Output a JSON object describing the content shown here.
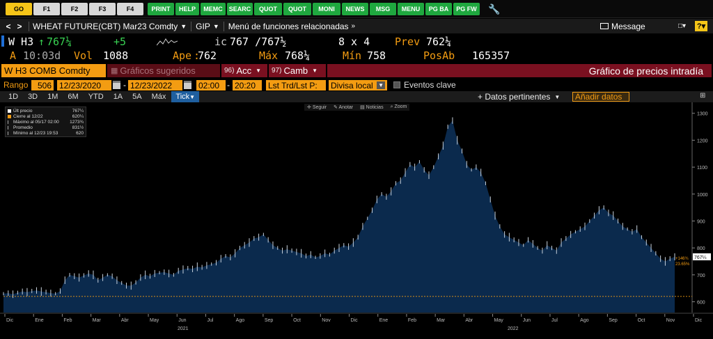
{
  "fkeys": [
    {
      "label": "GO",
      "style": "y",
      "w": 38
    },
    {
      "label": "F1",
      "style": "w",
      "w": 38
    },
    {
      "label": "F2",
      "style": "w",
      "w": 38
    },
    {
      "label": "F3",
      "style": "w",
      "w": 38
    },
    {
      "label": "F4",
      "style": "w",
      "w": 38
    },
    {
      "label": "PRINT",
      "style": "g",
      "w": 38
    },
    {
      "label": "HELP",
      "style": "g",
      "w": 34
    },
    {
      "label": "MEMC",
      "style": "g",
      "w": 36
    },
    {
      "label": "SEARC",
      "style": "g",
      "w": 37
    },
    {
      "label": "QUOT",
      "style": "g",
      "w": 40
    },
    {
      "label": "QUOT",
      "style": "g",
      "w": 40
    },
    {
      "label": "MONI",
      "style": "g",
      "w": 40
    },
    {
      "label": "NEWS",
      "style": "g",
      "w": 38
    },
    {
      "label": "MSG",
      "style": "g",
      "w": 38
    },
    {
      "label": "MENU",
      "style": "g",
      "w": 38
    },
    {
      "label": "PG BA",
      "style": "g",
      "w": 38
    },
    {
      "label": "PG FW",
      "style": "g",
      "w": 38
    }
  ],
  "nav": {
    "back": "<",
    "forward": ">",
    "security": "WHEAT FUTURE(CBT) Mar23 Comdty",
    "function": "GIP",
    "menu": "Menú de funciones relacionadas",
    "message": "Message"
  },
  "quote": {
    "ticker": "W H3",
    "last": "767¼",
    "change": "+5",
    "ic_label": "ic",
    "bid_ask": "767 /767½",
    "size": "8 x 4",
    "prev_label": "Prev",
    "prev": "762¼",
    "flag": "A",
    "time": "10:03d",
    "vol_label": "Vol",
    "vol": "1088",
    "open_label": "Ape",
    "open": "762",
    "high_label": "Máx",
    "high": "768¼",
    "low_label": "Mín",
    "low": "758",
    "oi_label": "PosAb",
    "oi": "165357"
  },
  "bar3": {
    "security": "W H3 COMB Comdty",
    "suggested": "Gráficos sugeridos",
    "actions_num": "96)",
    "actions": "Acc",
    "change_num": "97)",
    "change": "Camb",
    "title": "Gráfico de precios intradía"
  },
  "range": {
    "label": "Rango",
    "count": "506",
    "start": "12/23/2020",
    "end": "12/23/2022",
    "t_start": "02:00",
    "t_end": "20:20",
    "field": "Lst Trd/Lst P:",
    "currency": "Divisa local",
    "events": "Eventos clave"
  },
  "periods": [
    "1D",
    "3D",
    "1M",
    "6M",
    "YTD",
    "1A",
    "5A",
    "Máx",
    "Tick"
  ],
  "tools": {
    "datos": "+ Datos pertinentes",
    "add": "Añadir datos",
    "follow": "Seguir",
    "annotate": "Anotar",
    "news": "Noticias",
    "zoom": "Zoom"
  },
  "legend": [
    {
      "label": "Últ precio",
      "value": "767¼",
      "color": "#ffffff"
    },
    {
      "label": "Cierre al 12/22",
      "value": "620¼",
      "color": "#f39c12"
    },
    {
      "label": "Máximo al 05/17 02:00",
      "value": "1273¾",
      "color": "#ffffff"
    },
    {
      "label": "Promedio",
      "value": "831½",
      "color": "#ffffff"
    },
    {
      "label": "Mínimo al 12/23 19:53",
      "value": "620",
      "color": "#ffffff"
    }
  ],
  "chart_data": {
    "type": "area",
    "ylim": [
      560,
      1320
    ],
    "yticks": [
      600,
      700,
      800,
      900,
      1000,
      1100,
      1200,
      1300
    ],
    "xticks": [
      "Dic",
      "Ene",
      "Feb",
      "Mar",
      "Abr",
      "May",
      "Jun",
      "Jul",
      "Ago",
      "Sep",
      "Oct",
      "Nov",
      "Dic",
      "Ene",
      "Feb",
      "Mar",
      "Abr",
      "May",
      "Jun",
      "Jul",
      "Ago",
      "Sep",
      "Oct",
      "Nov",
      "Dic"
    ],
    "years": [
      "2021",
      "2022"
    ],
    "reference_line": 620,
    "last_price_label": "767¼",
    "change_label": "+146¾",
    "pct_label": "23.65%",
    "series": [
      {
        "values": [
          630,
          632,
          628,
          634,
          638,
          636,
          640,
          642,
          638,
          636,
          632,
          630,
          640,
          680,
          700,
          695,
          690,
          698,
          705,
          700,
          680,
          690,
          700,
          695,
          680,
          670,
          660,
          660,
          672,
          690,
          700,
          695,
          705,
          708,
          710,
          705,
          700,
          715,
          720,
          725,
          722,
          730,
          728,
          735,
          740,
          745,
          760,
          770,
          765,
          780,
          800,
          810,
          820,
          835,
          840,
          850,
          830,
          810,
          800,
          790,
          795,
          790,
          785,
          780,
          770,
          775,
          765,
          770,
          780,
          775,
          790,
          800,
          810,
          805,
          820,
          840,
          880,
          910,
          940,
          980,
          1000,
          990,
          1010,
          1040,
          1050,
          1080,
          1110,
          1100,
          1120,
          1090,
          1070,
          1100,
          1140,
          1180,
          1250,
          1273,
          1200,
          1160,
          1110,
          1090,
          1100,
          1080,
          1040,
          980,
          920,
          880,
          850,
          840,
          830,
          820,
          810,
          830,
          815,
          800,
          790,
          810,
          800,
          790,
          820,
          835,
          850,
          860,
          870,
          880,
          900,
          920,
          940,
          950,
          930,
          920,
          900,
          880,
          870,
          860,
          870,
          840,
          820,
          800,
          780,
          760,
          750,
          760,
          767
        ]
      }
    ]
  }
}
